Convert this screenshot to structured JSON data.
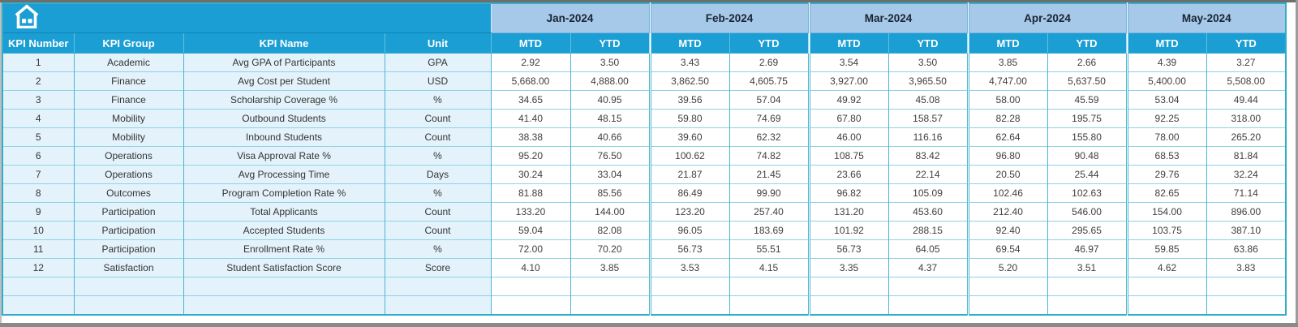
{
  "colors": {
    "accent_cyan": "#1b9ed3",
    "month_band": "#a6c9ea",
    "label_cell_bg": "#e4f3fb",
    "grid_teal": "#49b6d2",
    "header_text": "#ffffff",
    "month_text": "#1a2433",
    "data_text": "#3f3f3f"
  },
  "table": {
    "corner_icon": "home-icon",
    "months": [
      "Jan-2024",
      "Feb-2024",
      "Mar-2024",
      "Apr-2024",
      "May-2024"
    ],
    "sub_headers": [
      "MTD",
      "YTD"
    ],
    "col_headers": [
      "KPI Number",
      "KPI Group",
      "KPI Name",
      "Unit"
    ],
    "empty_row_count": 2,
    "rows": [
      {
        "num": "1",
        "group": "Academic",
        "name": "Avg GPA of Participants",
        "unit": "GPA",
        "values": [
          "2.92",
          "3.50",
          "3.43",
          "2.69",
          "3.54",
          "3.50",
          "3.85",
          "2.66",
          "4.39",
          "3.27"
        ]
      },
      {
        "num": "2",
        "group": "Finance",
        "name": "Avg Cost per Student",
        "unit": "USD",
        "values": [
          "5,668.00",
          "4,888.00",
          "3,862.50",
          "4,605.75",
          "3,927.00",
          "3,965.50",
          "4,747.00",
          "5,637.50",
          "5,400.00",
          "5,508.00"
        ]
      },
      {
        "num": "3",
        "group": "Finance",
        "name": "Scholarship Coverage %",
        "unit": "%",
        "values": [
          "34.65",
          "40.95",
          "39.56",
          "57.04",
          "49.92",
          "45.08",
          "58.00",
          "45.59",
          "53.04",
          "49.44"
        ]
      },
      {
        "num": "4",
        "group": "Mobility",
        "name": "Outbound Students",
        "unit": "Count",
        "values": [
          "41.40",
          "48.15",
          "59.80",
          "74.69",
          "67.80",
          "158.57",
          "82.28",
          "195.75",
          "92.25",
          "318.00"
        ]
      },
      {
        "num": "5",
        "group": "Mobility",
        "name": "Inbound Students",
        "unit": "Count",
        "values": [
          "38.38",
          "40.66",
          "39.60",
          "62.32",
          "46.00",
          "116.16",
          "62.64",
          "155.80",
          "78.00",
          "265.20"
        ]
      },
      {
        "num": "6",
        "group": "Operations",
        "name": "Visa Approval Rate %",
        "unit": "%",
        "values": [
          "95.20",
          "76.50",
          "100.62",
          "74.82",
          "108.75",
          "83.42",
          "96.80",
          "90.48",
          "68.53",
          "81.84"
        ]
      },
      {
        "num": "7",
        "group": "Operations",
        "name": "Avg Processing Time",
        "unit": "Days",
        "values": [
          "30.24",
          "33.04",
          "21.87",
          "21.45",
          "23.66",
          "22.14",
          "20.50",
          "25.44",
          "29.76",
          "32.24"
        ]
      },
      {
        "num": "8",
        "group": "Outcomes",
        "name": "Program Completion Rate %",
        "unit": "%",
        "values": [
          "81.88",
          "85.56",
          "86.49",
          "99.90",
          "96.82",
          "105.09",
          "102.46",
          "102.63",
          "82.65",
          "71.14"
        ]
      },
      {
        "num": "9",
        "group": "Participation",
        "name": "Total Applicants",
        "unit": "Count",
        "values": [
          "133.20",
          "144.00",
          "123.20",
          "257.40",
          "131.20",
          "453.60",
          "212.40",
          "546.00",
          "154.00",
          "896.00"
        ]
      },
      {
        "num": "10",
        "group": "Participation",
        "name": "Accepted Students",
        "unit": "Count",
        "values": [
          "59.04",
          "82.08",
          "96.05",
          "183.69",
          "101.92",
          "288.15",
          "92.40",
          "295.65",
          "103.75",
          "387.10"
        ]
      },
      {
        "num": "11",
        "group": "Participation",
        "name": "Enrollment Rate %",
        "unit": "%",
        "values": [
          "72.00",
          "70.20",
          "56.73",
          "55.51",
          "56.73",
          "64.05",
          "69.54",
          "46.97",
          "59.85",
          "63.86"
        ]
      },
      {
        "num": "12",
        "group": "Satisfaction",
        "name": "Student Satisfaction Score",
        "unit": "Score",
        "values": [
          "4.10",
          "3.85",
          "3.53",
          "4.15",
          "3.35",
          "4.37",
          "5.20",
          "3.51",
          "4.62",
          "3.83"
        ]
      }
    ]
  }
}
